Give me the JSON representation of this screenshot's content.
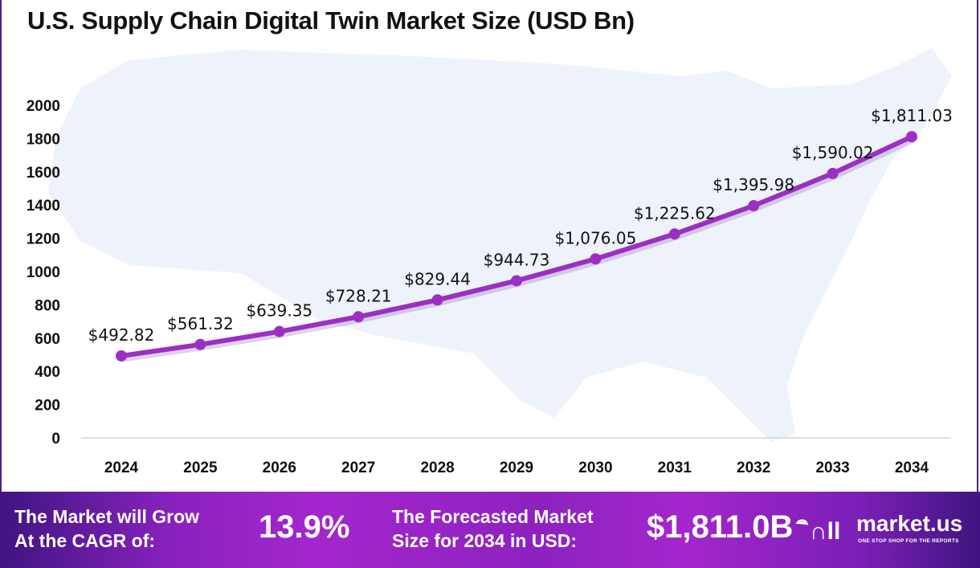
{
  "chart_data": {
    "type": "line",
    "title": "U.S. Supply Chain Digital Twin Market Size (USD Bn)",
    "categories": [
      "2024",
      "2025",
      "2026",
      "2027",
      "2028",
      "2029",
      "2030",
      "2031",
      "2032",
      "2033",
      "2034"
    ],
    "values": [
      492.82,
      561.32,
      639.35,
      728.21,
      829.44,
      944.73,
      1076.05,
      1225.62,
      1395.98,
      1590.02,
      1811.03
    ],
    "data_labels": [
      "$492.82",
      "$561.32",
      "$639.35",
      "$728.21",
      "$829.44",
      "$944.73",
      "$1,076.05",
      "$1,225.62",
      "$1,395.98",
      "$1,590.02",
      "$1,811.03"
    ],
    "yticks": [
      "0",
      "200",
      "400",
      "600",
      "800",
      "1000",
      "1200",
      "1400",
      "1600",
      "1800",
      "2000"
    ],
    "ylim": [
      0,
      2000
    ],
    "xlabel": "",
    "ylabel": "",
    "series_color": "#9b2fc4"
  },
  "footer": {
    "cagr_label_1": "The Market will Grow",
    "cagr_label_2": "At the CAGR of:",
    "cagr_value": "13.9%",
    "forecast_label_1": "The Forecasted Market",
    "forecast_label_2": "Size for 2034 in USD:",
    "forecast_value": "$1,811.0B",
    "brand_name": "market.us",
    "brand_tagline": "ONE STOP SHOP FOR THE REPORTS"
  }
}
